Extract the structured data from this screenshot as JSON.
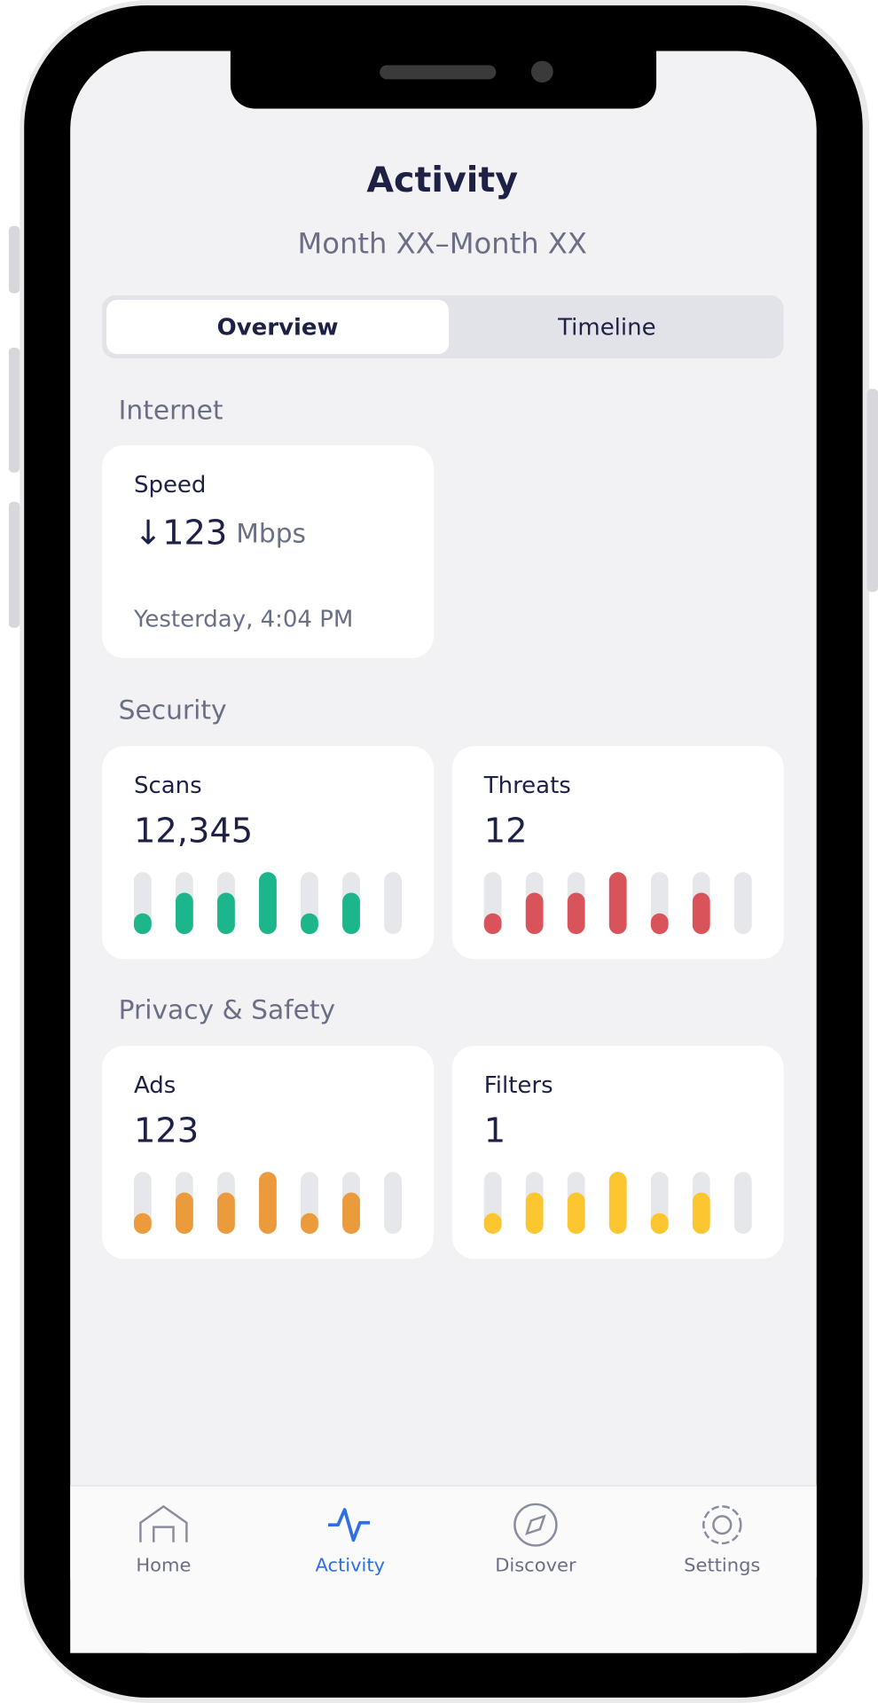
{
  "header": {
    "title": "Activity",
    "subtitle": "Month XX–Month XX"
  },
  "tabs": [
    "Overview",
    "Timeline"
  ],
  "sections": [
    {
      "title": "Internet",
      "cards": [
        {
          "label": "Speed",
          "value": "↓123",
          "unit": "Mbps",
          "note": "Yesterday, 4:04 PM"
        }
      ]
    },
    {
      "title": "Security",
      "cards": [
        {
          "label": "Scans",
          "value": "12,345",
          "chart": {
            "type": "bar",
            "values": [
              1,
              2,
              2,
              3,
              1,
              2,
              0
            ],
            "ylim": [
              0,
              3
            ],
            "color": "#1db58a"
          }
        },
        {
          "label": "Threats",
          "value": "12",
          "chart": {
            "type": "bar",
            "values": [
              1,
              2,
              2,
              3,
              1,
              2,
              0
            ],
            "ylim": [
              0,
              3
            ],
            "color": "#d9545a"
          }
        }
      ]
    },
    {
      "title": "Privacy & Safety",
      "cards": [
        {
          "label": "Ads",
          "value": "123",
          "chart": {
            "type": "bar",
            "values": [
              1,
              2,
              2,
              3,
              1,
              2,
              0
            ],
            "ylim": [
              0,
              3
            ],
            "color": "#eb9a3c"
          }
        },
        {
          "label": "Filters",
          "value": "1",
          "chart": {
            "type": "bar",
            "values": [
              1,
              2,
              2,
              3,
              1,
              2,
              0
            ],
            "ylim": [
              0,
              3
            ],
            "color": "#fbc630"
          }
        }
      ]
    }
  ],
  "nav": [
    "Home",
    "Activity",
    "Discover",
    "Settings"
  ]
}
